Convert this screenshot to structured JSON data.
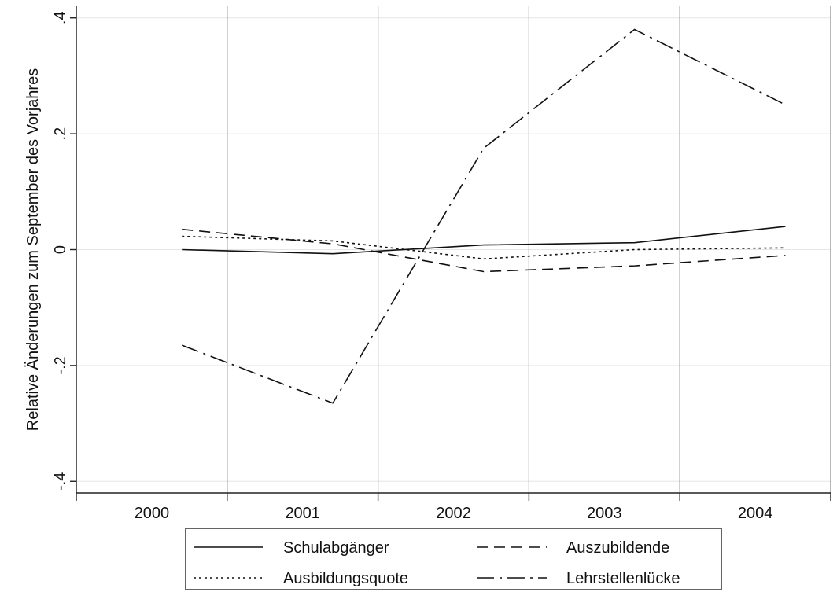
{
  "chart_data": {
    "type": "line",
    "ylabel": "Relative Änderungen zum September des Vorjahres",
    "ylim": [
      -0.42,
      0.42
    ],
    "yticks": [
      {
        "value": -0.4,
        "label": "-.4"
      },
      {
        "value": -0.2,
        "label": "-.2"
      },
      {
        "value": 0,
        "label": "0"
      },
      {
        "value": 0.2,
        "label": ".2"
      },
      {
        "value": 0.4,
        "label": ".4"
      }
    ],
    "xlim": [
      1999.5,
      2004.5
    ],
    "xticks": [
      2000,
      2001,
      2002,
      2003,
      2004
    ],
    "xtick_labels": [
      "2000",
      "2001",
      "2002",
      "2003",
      "2004"
    ],
    "grid": true,
    "legend_position": "bottom",
    "x": [
      2000.2,
      2001.2,
      2002.2,
      2003.2,
      2004.2
    ],
    "series": [
      {
        "name": "Schulabgänger",
        "style": "solid",
        "values": [
          0.0,
          -0.007,
          0.008,
          0.012,
          0.04
        ]
      },
      {
        "name": "Auszubildende",
        "style": "dashed",
        "values": [
          0.035,
          0.01,
          -0.038,
          -0.028,
          -0.01
        ]
      },
      {
        "name": "Ausbildungsquote",
        "style": "dotted",
        "values": [
          0.023,
          0.015,
          -0.016,
          0.0,
          0.003
        ]
      },
      {
        "name": "Lehrstellenlücke",
        "style": "dashdot",
        "values": [
          -0.165,
          -0.265,
          0.175,
          0.38,
          0.25
        ]
      }
    ]
  }
}
